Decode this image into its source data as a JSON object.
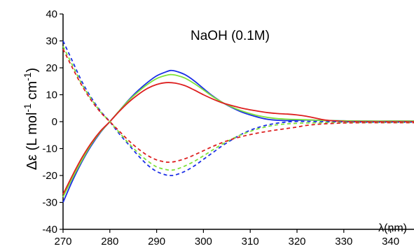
{
  "chart_data": {
    "type": "line",
    "title": "",
    "annotation": "NaOH (0.1M)",
    "xlabel": "λ(nm)",
    "ylabel_main": "Δε (L mol",
    "ylabel_sup1": "-1",
    "ylabel_mid": " cm",
    "ylabel_sup2": "-1",
    "ylabel_end": ")",
    "xlim": [
      270,
      345
    ],
    "ylim": [
      -40,
      40
    ],
    "x_ticks": [
      270,
      280,
      290,
      300,
      310,
      320,
      330,
      340
    ],
    "y_ticks": [
      -40,
      -30,
      -20,
      -10,
      0,
      10,
      20,
      30,
      40
    ],
    "grid": false,
    "legend": "none",
    "series": [
      {
        "color": "#1a2ee6",
        "dashed": false,
        "x": [
          270,
          272,
          274,
          276,
          278,
          280,
          282,
          284,
          286,
          288,
          290,
          292,
          293,
          294,
          296,
          298,
          300,
          302,
          304,
          306,
          308,
          310,
          312,
          314,
          316,
          318,
          320,
          322,
          325,
          330,
          335,
          340,
          345
        ],
        "y": [
          -30,
          -22,
          -15,
          -9,
          -4,
          0,
          4,
          8,
          11.5,
          14.5,
          17,
          18.5,
          19,
          18.8,
          17.5,
          15.2,
          12.3,
          9.5,
          7.2,
          5.3,
          3.7,
          2.5,
          1.5,
          0.8,
          0.5,
          0.4,
          0.5,
          0.6,
          0.5,
          0.3,
          0.2,
          0.2,
          0.2
        ]
      },
      {
        "color": "#7fe23a",
        "dashed": false,
        "x": [
          270,
          272,
          274,
          276,
          278,
          280,
          282,
          284,
          286,
          288,
          290,
          292,
          293,
          294,
          296,
          298,
          300,
          302,
          304,
          306,
          308,
          310,
          312,
          314,
          316,
          318,
          320,
          322,
          325,
          330,
          335,
          340,
          345
        ],
        "y": [
          -28,
          -21,
          -14.5,
          -8.5,
          -3.8,
          0,
          4,
          7.8,
          11,
          13.8,
          16,
          17.2,
          17.5,
          17.3,
          16.2,
          14.2,
          11.8,
          9.3,
          7.2,
          5.5,
          4.1,
          3,
          2.1,
          1.5,
          1.1,
          0.9,
          0.8,
          0.7,
          0.5,
          0.3,
          0.2,
          0.2,
          0.2
        ]
      },
      {
        "color": "#dd1f1f",
        "dashed": false,
        "x": [
          270,
          272,
          274,
          276,
          278,
          280,
          282,
          284,
          286,
          288,
          290,
          292,
          294,
          296,
          298,
          300,
          302,
          304,
          306,
          308,
          310,
          312,
          314,
          316,
          318,
          320,
          322,
          324,
          326,
          330,
          335,
          340,
          345
        ],
        "y": [
          -27,
          -20,
          -13.5,
          -8,
          -3.5,
          0,
          3.8,
          7.2,
          10,
          12.3,
          13.8,
          14.5,
          14.3,
          13.4,
          11.8,
          10,
          8.4,
          7,
          6,
          5.1,
          4.4,
          3.8,
          3.3,
          3,
          2.8,
          2.5,
          2,
          1.3,
          0.6,
          0.1,
          0,
          0,
          0
        ]
      },
      {
        "color": "#1a2ee6",
        "dashed": true,
        "x": [
          270,
          272,
          274,
          276,
          278,
          280,
          282,
          284,
          286,
          288,
          290,
          292,
          293,
          294,
          296,
          298,
          300,
          302,
          304,
          306,
          308,
          310,
          312,
          314,
          316,
          318,
          320,
          322,
          325,
          330,
          335,
          340,
          345
        ],
        "y": [
          30,
          22.5,
          15,
          9,
          4,
          0,
          -4.5,
          -8.5,
          -12.5,
          -16,
          -18.5,
          -19.8,
          -20,
          -19.8,
          -18.5,
          -16.5,
          -14,
          -11.5,
          -9,
          -6.8,
          -4.8,
          -3.2,
          -2,
          -1.1,
          -0.5,
          -0.1,
          0.1,
          0.1,
          0,
          -0.1,
          -0.2,
          -0.2,
          -0.2
        ]
      },
      {
        "color": "#7fe23a",
        "dashed": true,
        "x": [
          270,
          272,
          274,
          276,
          278,
          280,
          282,
          284,
          286,
          288,
          290,
          292,
          293,
          294,
          296,
          298,
          300,
          302,
          304,
          306,
          308,
          310,
          312,
          314,
          316,
          318,
          320,
          322,
          325,
          330,
          335,
          340,
          345
        ],
        "y": [
          28,
          21,
          14,
          8.5,
          3.7,
          0,
          -4,
          -8,
          -11.5,
          -14.5,
          -16.8,
          -17.8,
          -18,
          -17.8,
          -16.5,
          -14.8,
          -12.7,
          -10.5,
          -8.4,
          -6.5,
          -4.9,
          -3.6,
          -2.5,
          -1.7,
          -1.1,
          -0.8,
          -0.6,
          -0.5,
          -0.4,
          -0.3,
          -0.3,
          -0.3,
          -0.3
        ]
      },
      {
        "color": "#dd1f1f",
        "dashed": true,
        "x": [
          270,
          272,
          274,
          276,
          278,
          280,
          282,
          284,
          286,
          288,
          290,
          292,
          293,
          294,
          296,
          298,
          300,
          302,
          304,
          306,
          308,
          310,
          312,
          314,
          316,
          318,
          320,
          322,
          325,
          330,
          335,
          340,
          345
        ],
        "y": [
          27,
          20,
          13.5,
          8,
          3.5,
          0,
          -3.5,
          -7,
          -10,
          -12.5,
          -14.2,
          -15,
          -15,
          -14.8,
          -13.8,
          -12.4,
          -10.8,
          -9.2,
          -7.8,
          -6.6,
          -5.6,
          -4.8,
          -4.1,
          -3.5,
          -3,
          -2.5,
          -2,
          -1.4,
          -0.9,
          -0.5,
          -0.4,
          -0.4,
          -0.4
        ]
      }
    ]
  }
}
